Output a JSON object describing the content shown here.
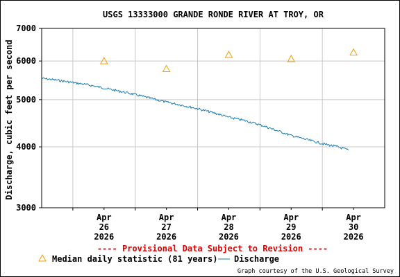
{
  "chart_data": {
    "type": "line",
    "title": "USGS 13333000 GRANDE RONDE RIVER AT TROY, OR",
    "ylabel": "Discharge, cubic feet per second",
    "xlabel": "",
    "yscale": "log",
    "ylim": [
      3000,
      7000
    ],
    "y_ticks": [
      {
        "value": 3000,
        "label": "3000"
      },
      {
        "value": 4000,
        "label": "4000"
      },
      {
        "value": 5000,
        "label": "5000"
      },
      {
        "value": 6000,
        "label": "6000"
      },
      {
        "value": 7000,
        "label": "7000"
      }
    ],
    "xlim": [
      "2026-04-25 12:00",
      "2026-05-01 00:00"
    ],
    "x_ticks": [
      {
        "date": "2026-04-26",
        "lines": [
          "Apr",
          "26",
          "2026"
        ]
      },
      {
        "date": "2026-04-27",
        "lines": [
          "Apr",
          "27",
          "2026"
        ]
      },
      {
        "date": "2026-04-28",
        "lines": [
          "Apr",
          "28",
          "2026"
        ]
      },
      {
        "date": "2026-04-29",
        "lines": [
          "Apr",
          "29",
          "2026"
        ]
      },
      {
        "date": "2026-04-30",
        "lines": [
          "Apr",
          "30",
          "2026"
        ]
      }
    ],
    "grid": true,
    "legend_position": "bottom",
    "series": [
      {
        "name": "Discharge",
        "color": "#1a7ab0",
        "style": "line",
        "points": [
          [
            "2026-04-25 12:00",
            5530
          ],
          [
            "2026-04-25 18:00",
            5480
          ],
          [
            "2026-04-26 00:00",
            5420
          ],
          [
            "2026-04-26 06:00",
            5360
          ],
          [
            "2026-04-26 12:00",
            5280
          ],
          [
            "2026-04-26 18:00",
            5200
          ],
          [
            "2026-04-27 00:00",
            5120
          ],
          [
            "2026-04-27 06:00",
            5030
          ],
          [
            "2026-04-27 12:00",
            4940
          ],
          [
            "2026-04-27 18:00",
            4870
          ],
          [
            "2026-04-28 00:00",
            4790
          ],
          [
            "2026-04-28 06:00",
            4700
          ],
          [
            "2026-04-28 12:00",
            4600
          ],
          [
            "2026-04-28 18:00",
            4530
          ],
          [
            "2026-04-29 00:00",
            4440
          ],
          [
            "2026-04-29 06:00",
            4330
          ],
          [
            "2026-04-29 12:00",
            4220
          ],
          [
            "2026-04-29 18:00",
            4140
          ],
          [
            "2026-04-30 00:00",
            4060
          ],
          [
            "2026-04-30 06:00",
            4000
          ],
          [
            "2026-04-30 10:00",
            3940
          ]
        ]
      },
      {
        "name": "Median daily statistic (81 years)",
        "color": "#f0a000",
        "style": "triangle",
        "points": [
          [
            "2026-04-26 12:00",
            6000
          ],
          [
            "2026-04-27 12:00",
            5780
          ],
          [
            "2026-04-28 12:00",
            6180
          ],
          [
            "2026-04-29 12:00",
            6060
          ],
          [
            "2026-04-30 12:00",
            6250
          ]
        ]
      }
    ],
    "annotations": [
      "---- Provisional Data Subject to Revision ----"
    ]
  },
  "legend": {
    "median_label": "Median daily statistic (81 years)",
    "discharge_label": "Discharge"
  },
  "notes": {
    "provisional": "---- Provisional Data Subject to Revision ----",
    "credit": "Graph courtesy of the U.S. Geological Survey"
  }
}
